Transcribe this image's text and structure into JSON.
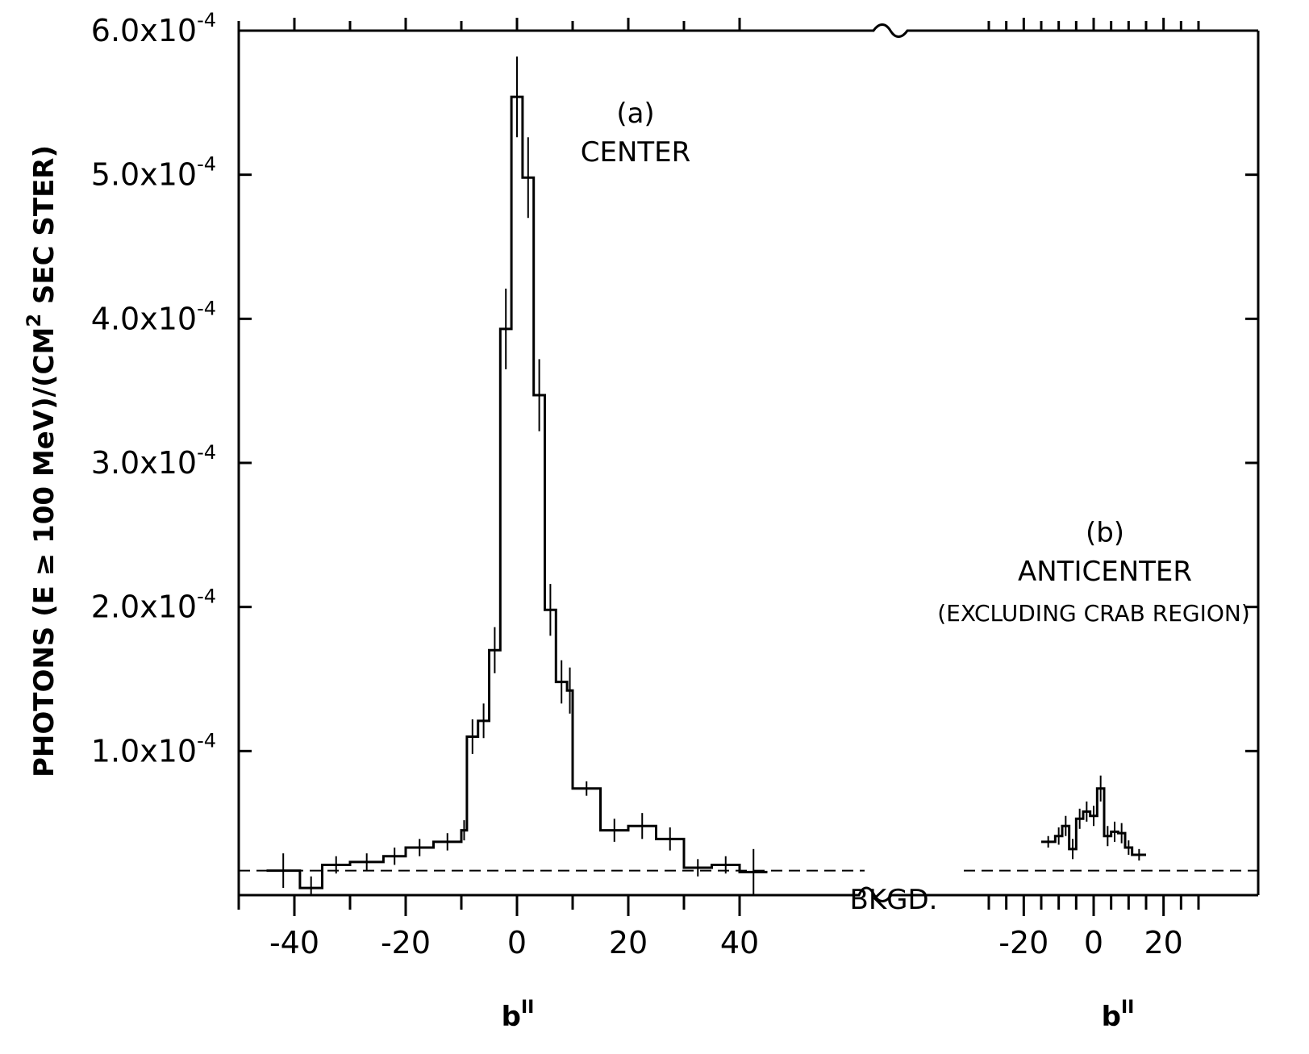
{
  "chart_data": {
    "type": "line",
    "y_axis": {
      "label_parts": [
        "PHOTONS (E ≥ 100 MeV)/(CM",
        "2",
        " SEC  STER)"
      ],
      "ylim": [
        0,
        0.0006
      ],
      "ticks": [
        {
          "value": 0.0001,
          "mantissa": "1.0x10",
          "exponent": "-4"
        },
        {
          "value": 0.0002,
          "mantissa": "2.0x10",
          "exponent": "-4"
        },
        {
          "value": 0.0003,
          "mantissa": "3.0x10",
          "exponent": "-4"
        },
        {
          "value": 0.0004,
          "mantissa": "4.0x10",
          "exponent": "-4"
        },
        {
          "value": 0.0005,
          "mantissa": "5.0x10",
          "exponent": "-4"
        },
        {
          "value": 0.0006,
          "mantissa": "6.0x10",
          "exponent": "-4"
        }
      ]
    },
    "panels": [
      {
        "id": "a",
        "annotation": [
          "(a)",
          "CENTER"
        ],
        "xlabel": "b",
        "xlabel_sup": "II",
        "xlim": [
          -50,
          50
        ],
        "tick_labels": [
          "-40",
          "-20",
          "0",
          "20",
          "40"
        ],
        "tick_values": [
          -40,
          -20,
          0,
          20,
          40
        ],
        "minor_ticks": [
          -50,
          -30,
          -10,
          10,
          30
        ],
        "histogram": {
          "edges": [
            -45,
            -39,
            -35,
            -30,
            -24,
            -20,
            -15,
            -10,
            -9,
            -7,
            -5,
            -3,
            -1,
            1,
            3,
            5,
            7,
            9,
            10,
            15,
            20,
            25,
            30,
            35,
            40,
            45
          ],
          "values": [
            1.7e-05,
            5e-06,
            2.1e-05,
            2.3e-05,
            2.7e-05,
            3.3e-05,
            3.7e-05,
            4.5e-05,
            0.00011,
            0.000121,
            0.00017,
            0.000393,
            0.000554,
            0.000498,
            0.000347,
            0.000198,
            0.000148,
            0.000142,
            7.4e-05,
            4.5e-05,
            4.8e-05,
            3.9e-05,
            1.9e-05,
            2.1e-05,
            1.6e-05
          ],
          "errors": [
            1.2e-05,
            8e-06,
            6e-06,
            6e-06,
            6e-06,
            6e-06,
            6e-06,
            7e-06,
            1.2e-05,
            1.2e-05,
            1.6e-05,
            2.8e-05,
            2.8e-05,
            2.8e-05,
            2.5e-05,
            1.8e-05,
            1.5e-05,
            1.6e-05,
            5e-06,
            8e-06,
            9e-06,
            8e-06,
            6e-06,
            6e-06,
            1.6e-05
          ]
        }
      },
      {
        "id": "b",
        "annotation": [
          "(b)",
          "ANTICENTER",
          "(EXCLUDING CRAB REGION)"
        ],
        "xlabel": "b",
        "xlabel_sup": "II",
        "xlim": [
          -30,
          30
        ],
        "tick_labels": [
          "-20",
          "0",
          "20"
        ],
        "tick_values": [
          -20,
          0,
          20
        ],
        "minor_ticks": [
          -30,
          -25,
          -15,
          -10,
          -5,
          5,
          10,
          15,
          25,
          30
        ],
        "histogram": {
          "edges": [
            -15,
            -11,
            -9,
            -7,
            -5,
            -3,
            -1,
            1,
            3,
            5,
            7,
            9,
            11,
            15
          ],
          "values": [
            3.7e-05,
            4.1e-05,
            4.8e-05,
            3.2e-05,
            5.3e-05,
            5.8e-05,
            5.5e-05,
            7.4e-05,
            4.1e-05,
            4.4e-05,
            4.3e-05,
            3.3e-05,
            2.8e-05
          ],
          "errors": [
            4e-06,
            6e-06,
            7e-06,
            7e-06,
            7e-06,
            7e-06,
            7e-06,
            9e-06,
            7e-06,
            7e-06,
            7e-06,
            5e-06,
            4e-06
          ]
        }
      }
    ],
    "background": {
      "label": "BKGD.",
      "value": 1.7e-05,
      "style": "dashed"
    }
  }
}
